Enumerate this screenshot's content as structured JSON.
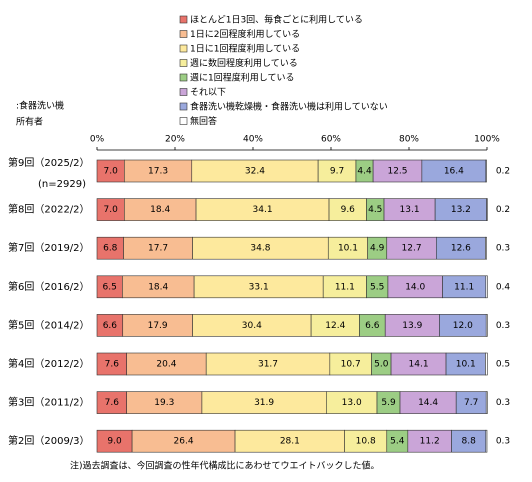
{
  "chart_data": {
    "type": "stacked-bar",
    "orientation": "horizontal",
    "axis_note": [
      ":食器洗い機",
      "所有者"
    ],
    "categories": [
      "第9回（2025/2）",
      "第8回（2022/2）",
      "第7回（2019/2）",
      "第6回（2016/2）",
      "第5回（2014/2）",
      "第4回（2012/2）",
      "第3回（2011/2）",
      "第2回（2009/3）"
    ],
    "sample_note": "(n=2929)",
    "xlim": [
      0,
      100
    ],
    "xticks": [
      {
        "value": 0,
        "label": "0%"
      },
      {
        "value": 20,
        "label": "20%"
      },
      {
        "value": 40,
        "label": "40%"
      },
      {
        "value": 60,
        "label": "60%"
      },
      {
        "value": 80,
        "label": "80%"
      },
      {
        "value": 100,
        "label": "100%"
      }
    ],
    "series": [
      {
        "name": "ほとんど1日3回、毎食ごとに利用している",
        "color": "#e8736b",
        "values": [
          7.0,
          7.0,
          6.8,
          6.5,
          6.6,
          7.6,
          7.6,
          9.0
        ],
        "value_labels": [
          "7.0",
          "7.0",
          "6.8",
          "6.5",
          "6.6",
          "7.6",
          "7.6",
          "9.0"
        ]
      },
      {
        "name": "1日に2回程度利用している",
        "color": "#f8bd92",
        "values": [
          17.3,
          18.4,
          17.7,
          18.4,
          17.9,
          20.4,
          19.3,
          26.4
        ],
        "value_labels": [
          "17.3",
          "18.4",
          "17.7",
          "18.4",
          "17.9",
          "20.4",
          "19.3",
          "26.4"
        ]
      },
      {
        "name": "1日に1回程度利用している",
        "color": "#fde99d",
        "values": [
          32.4,
          34.1,
          34.8,
          33.1,
          30.4,
          31.7,
          31.9,
          28.1
        ],
        "value_labels": [
          "32.4",
          "34.1",
          "34.8",
          "33.1",
          "30.4",
          "31.7",
          "31.9",
          "28.1"
        ]
      },
      {
        "name": "週に数回程度利用している",
        "color": "#f6ee9c",
        "values": [
          9.7,
          9.6,
          10.1,
          11.1,
          12.4,
          10.7,
          13.0,
          10.8
        ],
        "value_labels": [
          "9.7",
          "9.6",
          "10.1",
          "11.1",
          "12.4",
          "10.7",
          "13.0",
          "10.8"
        ]
      },
      {
        "name": "週に1回程度利用している",
        "color": "#9ccd84",
        "values": [
          4.4,
          4.5,
          4.9,
          5.5,
          6.6,
          5.0,
          5.9,
          5.4
        ],
        "value_labels": [
          "4.4",
          "4.5",
          "4.9",
          "5.5",
          "6.6",
          "5.0",
          "5.9",
          "5.4"
        ]
      },
      {
        "name": "それ以下",
        "color": "#caa5d8",
        "values": [
          12.5,
          13.1,
          12.7,
          14.0,
          13.9,
          14.1,
          14.4,
          11.2
        ],
        "value_labels": [
          "12.5",
          "13.1",
          "12.7",
          "14.0",
          "13.9",
          "14.1",
          "14.4",
          "11.2"
        ]
      },
      {
        "name": "食器洗い機乾燥機・食器洗い機は利用していない",
        "color": "#9aa8dd",
        "values": [
          16.4,
          13.2,
          12.6,
          11.1,
          12.0,
          10.1,
          7.7,
          8.8
        ],
        "value_labels": [
          "16.4",
          "13.2",
          "12.6",
          "11.1",
          "12.0",
          "10.1",
          "7.7",
          "8.8"
        ]
      },
      {
        "name": "無回答",
        "color": "#ffffff",
        "values": [
          0.2,
          0.2,
          0.3,
          0.4,
          0.3,
          0.5,
          0.3,
          0.3
        ],
        "value_labels": [
          "0.2",
          "0.2",
          "0.3",
          "0.4",
          "0.3",
          "0.5",
          "0.3",
          "0.3"
        ]
      }
    ],
    "note": "注)過去調査は、今回調査の性年代構成比にあわせてウエイトバックした値。"
  }
}
